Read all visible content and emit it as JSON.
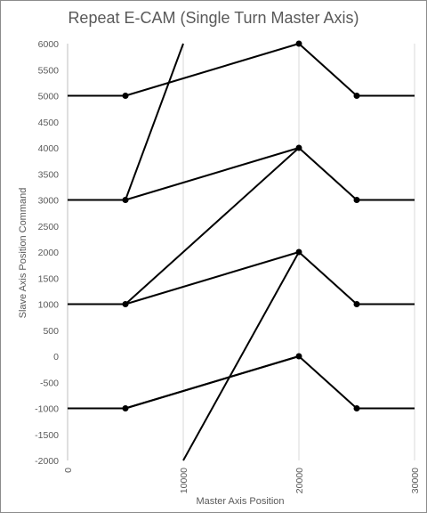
{
  "chart_data": {
    "type": "line",
    "title": "Repeat E-CAM (Single Turn Master Axis)",
    "xlabel": "Master Axis Position",
    "ylabel": "Slave Axis Position Command",
    "xlim": [
      0,
      30000
    ],
    "ylim": [
      -2000,
      6000
    ],
    "xticks": [
      0,
      10000,
      20000,
      30000
    ],
    "yticks": [
      -2000,
      -1500,
      -1000,
      -500,
      0,
      500,
      1000,
      1500,
      2000,
      2500,
      3000,
      3500,
      4000,
      4500,
      5000,
      5500,
      6000
    ],
    "grid": "vertical",
    "legend": "none",
    "line_color": "#000000",
    "series": [
      {
        "x": [
          0,
          5000,
          20000,
          25000,
          30000
        ],
        "y": [
          -1000,
          -1000,
          0,
          -1000,
          -1000
        ],
        "markers": [
          1,
          2,
          3
        ]
      },
      {
        "x": [
          0,
          5000,
          20000,
          25000,
          30000
        ],
        "y": [
          1000,
          1000,
          2000,
          1000,
          1000
        ],
        "markers": [
          1,
          2,
          3
        ]
      },
      {
        "x": [
          0,
          5000,
          20000,
          25000,
          30000
        ],
        "y": [
          3000,
          3000,
          4000,
          3000,
          3000
        ],
        "markers": [
          1,
          2,
          3
        ]
      },
      {
        "x": [
          0,
          5000,
          20000,
          25000,
          30000
        ],
        "y": [
          5000,
          5000,
          6000,
          5000,
          5000
        ],
        "markers": [
          1,
          2,
          3
        ]
      },
      {
        "x": [
          10000,
          20000
        ],
        "y": [
          -2000,
          2000
        ],
        "markers": []
      },
      {
        "x": [
          5000,
          20000
        ],
        "y": [
          -1000,
          0
        ],
        "markers": []
      },
      {
        "x": [
          5000,
          20000
        ],
        "y": [
          1000,
          4000
        ],
        "markers": []
      },
      {
        "x": [
          5000,
          10000
        ],
        "y": [
          3000,
          6000
        ],
        "markers": []
      }
    ]
  }
}
